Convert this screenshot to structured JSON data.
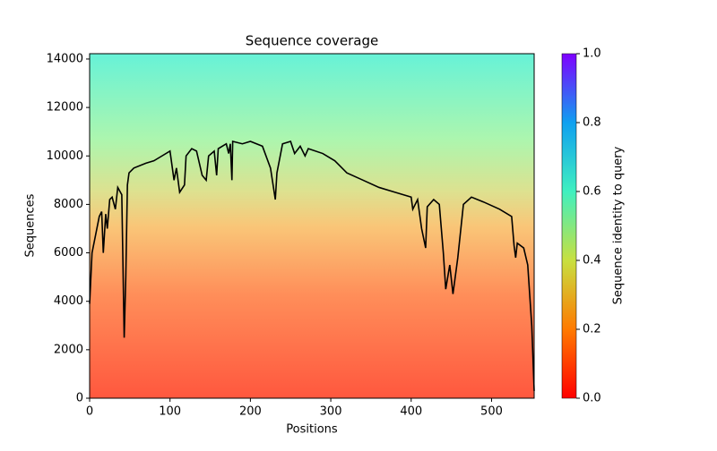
{
  "chart_data": {
    "type": "line",
    "title": "Sequence coverage",
    "xlabel": "Positions",
    "ylabel": "Sequences",
    "x": [
      0,
      3,
      12,
      15,
      17,
      20,
      22,
      25,
      28,
      32,
      35,
      40,
      43,
      45,
      47,
      49,
      55,
      70,
      80,
      90,
      100,
      105,
      108,
      112,
      118,
      120,
      127,
      133,
      140,
      145,
      148,
      155,
      158,
      160,
      170,
      173,
      175,
      177,
      178,
      190,
      200,
      215,
      225,
      231,
      233,
      240,
      250,
      255,
      262,
      268,
      272,
      290,
      305,
      320,
      340,
      360,
      380,
      400,
      402,
      408,
      413,
      418,
      420,
      428,
      435,
      440,
      443,
      448,
      452,
      458,
      465,
      475,
      490,
      510,
      525,
      528,
      530,
      532,
      540,
      545,
      550,
      553
    ],
    "values": [
      3900,
      6000,
      7500,
      7700,
      6000,
      7600,
      7000,
      8200,
      8300,
      7800,
      8700,
      8400,
      2500,
      5000,
      8800,
      9300,
      9500,
      9700,
      9800,
      10000,
      10200,
      9000,
      9500,
      8500,
      8800,
      10000,
      10300,
      10200,
      9200,
      9000,
      10000,
      10200,
      9200,
      10300,
      10500,
      10100,
      10500,
      9000,
      10600,
      10500,
      10600,
      10400,
      9500,
      8200,
      9300,
      10500,
      10600,
      10100,
      10400,
      10000,
      10300,
      10100,
      9800,
      9300,
      9000,
      8700,
      8500,
      8300,
      7800,
      8200,
      7000,
      6200,
      7900,
      8200,
      8000,
      6000,
      4500,
      5500,
      4300,
      5800,
      8000,
      8300,
      8100,
      7800,
      7500,
      6300,
      5800,
      6400,
      6200,
      5500,
      3000,
      300
    ],
    "color": "#000000",
    "xlim": [
      0,
      553
    ],
    "ylim": [
      0,
      14220
    ],
    "xticks": [
      0,
      100,
      200,
      300,
      400,
      500
    ],
    "yticks": [
      0,
      2000,
      4000,
      6000,
      8000,
      10000,
      12000,
      14000
    ],
    "colorbar": {
      "label": "Sequence identity to query",
      "lim": [
        0,
        1
      ],
      "ticks": [
        {
          "value": 0,
          "label": "0.0"
        },
        0.2,
        0.4,
        0.6,
        0.8,
        {
          "value": 1,
          "label": "1.0"
        }
      ]
    }
  }
}
